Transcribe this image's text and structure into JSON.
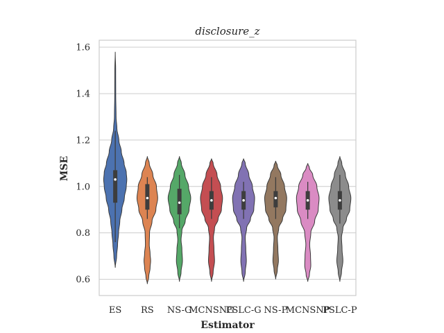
{
  "chart_data": {
    "type": "violin",
    "title": "disclosure_z",
    "xlabel": "Estimator",
    "ylabel": "MSE",
    "ylim": [
      0.53,
      1.63
    ],
    "yticks": [
      0.6,
      0.8,
      1.0,
      1.2,
      1.4,
      1.6
    ],
    "ytick_labels": [
      "0.6",
      "0.8",
      "1.0",
      "1.2",
      "1.4",
      "1.6"
    ],
    "grid": true,
    "categories": [
      "ES",
      "RS",
      "NS-G",
      "MCNSNG",
      "PSLC-G",
      "NS-P",
      "MCNSNP",
      "PSLC-P"
    ],
    "series": [
      {
        "name": "ES",
        "color": "#4c72b0",
        "min": 0.65,
        "max": 1.58,
        "q1": 0.93,
        "median": 1.03,
        "q3": 1.07,
        "whisker_low": 0.76,
        "whisker_high": 1.24,
        "profile": [
          [
            0.65,
            0.0
          ],
          [
            0.7,
            0.1
          ],
          [
            0.75,
            0.17
          ],
          [
            0.8,
            0.24
          ],
          [
            0.85,
            0.33
          ],
          [
            0.9,
            0.48
          ],
          [
            0.95,
            0.66
          ],
          [
            1.0,
            0.8
          ],
          [
            1.03,
            0.84
          ],
          [
            1.06,
            0.8
          ],
          [
            1.1,
            0.64
          ],
          [
            1.15,
            0.44
          ],
          [
            1.2,
            0.26
          ],
          [
            1.25,
            0.12
          ],
          [
            1.3,
            0.06
          ],
          [
            1.4,
            0.035
          ],
          [
            1.5,
            0.03
          ],
          [
            1.58,
            0.0
          ]
        ]
      },
      {
        "name": "RS",
        "color": "#dd8452",
        "min": 0.58,
        "max": 1.13,
        "q1": 0.9,
        "median": 0.95,
        "q3": 1.01,
        "whisker_low": 0.86,
        "whisker_high": 1.04,
        "profile": [
          [
            0.58,
            0.0
          ],
          [
            0.61,
            0.1
          ],
          [
            0.65,
            0.2
          ],
          [
            0.68,
            0.24
          ],
          [
            0.71,
            0.2
          ],
          [
            0.75,
            0.14
          ],
          [
            0.8,
            0.16
          ],
          [
            0.85,
            0.34
          ],
          [
            0.9,
            0.62
          ],
          [
            0.95,
            0.75
          ],
          [
            1.0,
            0.66
          ],
          [
            1.05,
            0.4
          ],
          [
            1.1,
            0.14
          ],
          [
            1.13,
            0.0
          ]
        ]
      },
      {
        "name": "NS-G",
        "color": "#55a868",
        "min": 0.59,
        "max": 1.13,
        "q1": 0.88,
        "median": 0.93,
        "q3": 0.99,
        "whisker_low": 0.82,
        "whisker_high": 1.05,
        "profile": [
          [
            0.59,
            0.0
          ],
          [
            0.63,
            0.12
          ],
          [
            0.68,
            0.22
          ],
          [
            0.73,
            0.18
          ],
          [
            0.77,
            0.12
          ],
          [
            0.81,
            0.18
          ],
          [
            0.85,
            0.42
          ],
          [
            0.9,
            0.7
          ],
          [
            0.95,
            0.82
          ],
          [
            1.0,
            0.66
          ],
          [
            1.05,
            0.4
          ],
          [
            1.1,
            0.14
          ],
          [
            1.13,
            0.0
          ]
        ]
      },
      {
        "name": "MCNSNG",
        "color": "#c44e52",
        "min": 0.59,
        "max": 1.12,
        "q1": 0.9,
        "median": 0.94,
        "q3": 0.98,
        "whisker_low": 0.86,
        "whisker_high": 1.04,
        "profile": [
          [
            0.59,
            0.0
          ],
          [
            0.63,
            0.12
          ],
          [
            0.68,
            0.22
          ],
          [
            0.73,
            0.18
          ],
          [
            0.78,
            0.14
          ],
          [
            0.82,
            0.22
          ],
          [
            0.86,
            0.48
          ],
          [
            0.9,
            0.72
          ],
          [
            0.95,
            0.8
          ],
          [
            1.0,
            0.66
          ],
          [
            1.05,
            0.4
          ],
          [
            1.1,
            0.12
          ],
          [
            1.12,
            0.0
          ]
        ]
      },
      {
        "name": "PSLC-G",
        "color": "#8172b3",
        "min": 0.59,
        "max": 1.12,
        "q1": 0.9,
        "median": 0.94,
        "q3": 0.98,
        "whisker_low": 0.86,
        "whisker_high": 1.02,
        "profile": [
          [
            0.59,
            0.0
          ],
          [
            0.63,
            0.12
          ],
          [
            0.68,
            0.2
          ],
          [
            0.73,
            0.16
          ],
          [
            0.78,
            0.12
          ],
          [
            0.82,
            0.22
          ],
          [
            0.86,
            0.5
          ],
          [
            0.9,
            0.74
          ],
          [
            0.95,
            0.8
          ],
          [
            1.0,
            0.64
          ],
          [
            1.05,
            0.38
          ],
          [
            1.1,
            0.12
          ],
          [
            1.12,
            0.0
          ]
        ]
      },
      {
        "name": "NS-P",
        "color": "#937860",
        "min": 0.6,
        "max": 1.11,
        "q1": 0.91,
        "median": 0.95,
        "q3": 0.98,
        "whisker_low": 0.86,
        "whisker_high": 1.04,
        "profile": [
          [
            0.6,
            0.0
          ],
          [
            0.64,
            0.12
          ],
          [
            0.68,
            0.2
          ],
          [
            0.73,
            0.16
          ],
          [
            0.78,
            0.12
          ],
          [
            0.82,
            0.22
          ],
          [
            0.86,
            0.5
          ],
          [
            0.9,
            0.74
          ],
          [
            0.95,
            0.8
          ],
          [
            1.0,
            0.64
          ],
          [
            1.05,
            0.38
          ],
          [
            1.09,
            0.12
          ],
          [
            1.11,
            0.0
          ]
        ]
      },
      {
        "name": "MCNSNP",
        "color": "#da8bc3",
        "min": 0.59,
        "max": 1.1,
        "q1": 0.9,
        "median": 0.94,
        "q3": 0.98,
        "whisker_low": 0.86,
        "whisker_high": 1.02,
        "profile": [
          [
            0.59,
            0.0
          ],
          [
            0.62,
            0.12
          ],
          [
            0.66,
            0.22
          ],
          [
            0.7,
            0.2
          ],
          [
            0.75,
            0.14
          ],
          [
            0.8,
            0.22
          ],
          [
            0.85,
            0.5
          ],
          [
            0.9,
            0.76
          ],
          [
            0.95,
            0.82
          ],
          [
            1.0,
            0.66
          ],
          [
            1.05,
            0.36
          ],
          [
            1.08,
            0.12
          ],
          [
            1.1,
            0.0
          ]
        ]
      },
      {
        "name": "PSLC-P",
        "color": "#8c8c8c",
        "min": 0.59,
        "max": 1.13,
        "q1": 0.9,
        "median": 0.94,
        "q3": 0.98,
        "whisker_low": 0.84,
        "whisker_high": 1.05,
        "profile": [
          [
            0.59,
            0.0
          ],
          [
            0.63,
            0.12
          ],
          [
            0.68,
            0.22
          ],
          [
            0.73,
            0.16
          ],
          [
            0.78,
            0.12
          ],
          [
            0.82,
            0.22
          ],
          [
            0.86,
            0.48
          ],
          [
            0.9,
            0.72
          ],
          [
            0.95,
            0.8
          ],
          [
            1.0,
            0.64
          ],
          [
            1.05,
            0.4
          ],
          [
            1.1,
            0.14
          ],
          [
            1.13,
            0.0
          ]
        ]
      }
    ]
  }
}
